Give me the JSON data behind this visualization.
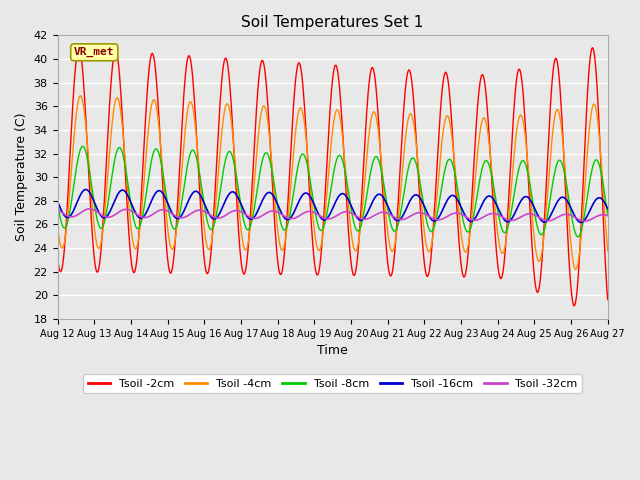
{
  "title": "Soil Temperatures Set 1",
  "xlabel": "Time",
  "ylabel": "Soil Temperature (C)",
  "ylim": [
    18,
    42
  ],
  "yticks": [
    18,
    20,
    22,
    24,
    26,
    28,
    30,
    32,
    34,
    36,
    38,
    40,
    42
  ],
  "fig_facecolor": "#e8e8e8",
  "ax_facecolor": "#e8e8e8",
  "grid_color": "#ffffff",
  "line_colors": {
    "Tsoil -2cm": "#ff0000",
    "Tsoil -4cm": "#ff8c00",
    "Tsoil -8cm": "#00cc00",
    "Tsoil -16cm": "#0000cc",
    "Tsoil -32cm": "#cc44cc"
  },
  "annotation_text": "VR_met",
  "x_tick_labels": [
    "Aug 12",
    "Aug 13",
    "Aug 14",
    "Aug 15",
    "Aug 16",
    "Aug 17",
    "Aug 18",
    "Aug 19",
    "Aug 20",
    "Aug 21",
    "Aug 22",
    "Aug 23",
    "Aug 24",
    "Aug 25",
    "Aug 26",
    "Aug 27"
  ]
}
